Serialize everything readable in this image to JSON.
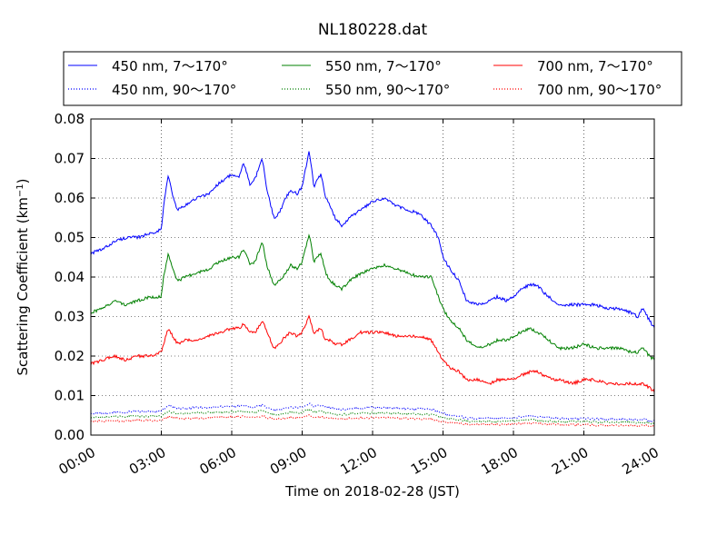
{
  "chart_data": {
    "type": "line",
    "title": "NL180228.dat",
    "xlabel": "Time on 2018-02-28 (JST)",
    "ylabel_main": "Scattering Coefficient (km",
    "ylabel_sup": "−1",
    "ylabel_close": ")",
    "xlim": [
      0,
      24
    ],
    "ylim": [
      0,
      0.08
    ],
    "x_ticks": [
      0,
      3,
      6,
      9,
      12,
      15,
      18,
      21,
      24
    ],
    "x_tick_labels": [
      "00:00",
      "03:00",
      "06:00",
      "09:00",
      "12:00",
      "15:00",
      "18:00",
      "21:00",
      "24:00"
    ],
    "y_ticks": [
      0,
      0.01,
      0.02,
      0.03,
      0.04,
      0.05,
      0.06,
      0.07,
      0.08
    ],
    "y_tick_labels": [
      "0.00",
      "0.01",
      "0.02",
      "0.03",
      "0.04",
      "0.05",
      "0.06",
      "0.07",
      "0.08"
    ],
    "grid": true,
    "legend_position": "top, outside plot, 3 columns",
    "x": [
      0,
      0.5,
      1,
      1.5,
      2,
      2.5,
      3,
      3.1,
      3.3,
      3.5,
      3.7,
      4,
      4.5,
      5,
      5.5,
      6,
      6.3,
      6.5,
      6.8,
      7,
      7.3,
      7.5,
      7.8,
      8,
      8.3,
      8.5,
      8.8,
      9,
      9.3,
      9.5,
      9.8,
      10,
      10.2,
      10.4,
      10.7,
      11,
      11.5,
      12,
      12.5,
      13,
      13.5,
      14,
      14.5,
      14.8,
      15,
      15.3,
      15.7,
      16,
      16.5,
      17,
      17.3,
      17.7,
      18,
      18.3,
      18.7,
      19,
      19.3,
      19.7,
      20,
      20.5,
      21,
      21.5,
      22,
      22.5,
      23,
      23.3,
      23.5,
      23.8,
      24
    ],
    "series": [
      {
        "name": "450 nm, 7～170°",
        "color": "#0000ff",
        "style": "solid",
        "values": [
          0.046,
          0.047,
          0.049,
          0.05,
          0.05,
          0.051,
          0.052,
          0.058,
          0.066,
          0.06,
          0.057,
          0.058,
          0.06,
          0.061,
          0.064,
          0.066,
          0.065,
          0.069,
          0.063,
          0.065,
          0.07,
          0.062,
          0.055,
          0.056,
          0.06,
          0.062,
          0.061,
          0.063,
          0.072,
          0.063,
          0.066,
          0.06,
          0.058,
          0.055,
          0.053,
          0.055,
          0.057,
          0.059,
          0.06,
          0.058,
          0.057,
          0.056,
          0.053,
          0.05,
          0.045,
          0.042,
          0.039,
          0.034,
          0.033,
          0.034,
          0.035,
          0.034,
          0.035,
          0.037,
          0.038,
          0.038,
          0.036,
          0.034,
          0.033,
          0.033,
          0.033,
          0.033,
          0.032,
          0.032,
          0.031,
          0.03,
          0.032,
          0.029,
          0.027
        ]
      },
      {
        "name": "550 nm, 7～170°",
        "color": "#008000",
        "style": "solid",
        "values": [
          0.031,
          0.032,
          0.034,
          0.033,
          0.034,
          0.035,
          0.035,
          0.04,
          0.046,
          0.042,
          0.039,
          0.04,
          0.041,
          0.042,
          0.044,
          0.045,
          0.045,
          0.047,
          0.043,
          0.044,
          0.049,
          0.043,
          0.038,
          0.039,
          0.041,
          0.043,
          0.042,
          0.044,
          0.051,
          0.044,
          0.046,
          0.041,
          0.039,
          0.038,
          0.037,
          0.039,
          0.041,
          0.042,
          0.043,
          0.042,
          0.041,
          0.04,
          0.04,
          0.035,
          0.032,
          0.029,
          0.027,
          0.024,
          0.022,
          0.023,
          0.024,
          0.024,
          0.025,
          0.026,
          0.027,
          0.026,
          0.025,
          0.023,
          0.022,
          0.022,
          0.023,
          0.022,
          0.022,
          0.022,
          0.021,
          0.021,
          0.022,
          0.02,
          0.019
        ]
      },
      {
        "name": "700 nm, 7～170°",
        "color": "#ff0000",
        "style": "solid",
        "values": [
          0.018,
          0.019,
          0.02,
          0.019,
          0.02,
          0.02,
          0.021,
          0.023,
          0.027,
          0.025,
          0.023,
          0.024,
          0.024,
          0.025,
          0.026,
          0.027,
          0.027,
          0.028,
          0.026,
          0.026,
          0.029,
          0.026,
          0.022,
          0.023,
          0.025,
          0.026,
          0.025,
          0.026,
          0.03,
          0.026,
          0.027,
          0.024,
          0.024,
          0.023,
          0.023,
          0.024,
          0.026,
          0.026,
          0.026,
          0.025,
          0.025,
          0.025,
          0.024,
          0.021,
          0.019,
          0.017,
          0.016,
          0.014,
          0.014,
          0.013,
          0.014,
          0.014,
          0.014,
          0.015,
          0.016,
          0.016,
          0.015,
          0.014,
          0.014,
          0.013,
          0.014,
          0.014,
          0.013,
          0.013,
          0.013,
          0.013,
          0.013,
          0.012,
          0.011
        ]
      },
      {
        "name": "450 nm, 90～170°",
        "color": "#0000ff",
        "style": "dotted",
        "values": [
          0.0055,
          0.0055,
          0.0058,
          0.0058,
          0.006,
          0.006,
          0.006,
          0.0065,
          0.0075,
          0.007,
          0.0068,
          0.0068,
          0.007,
          0.007,
          0.0072,
          0.0073,
          0.0073,
          0.0075,
          0.007,
          0.0072,
          0.0077,
          0.007,
          0.0065,
          0.0065,
          0.0068,
          0.007,
          0.007,
          0.0072,
          0.008,
          0.0073,
          0.0075,
          0.007,
          0.0068,
          0.0066,
          0.0065,
          0.0066,
          0.0068,
          0.007,
          0.007,
          0.0068,
          0.0067,
          0.0066,
          0.0065,
          0.006,
          0.0055,
          0.005,
          0.0048,
          0.0043,
          0.0042,
          0.0043,
          0.0043,
          0.0043,
          0.0044,
          0.0046,
          0.0048,
          0.0047,
          0.0045,
          0.0043,
          0.0042,
          0.0042,
          0.0042,
          0.0041,
          0.004,
          0.004,
          0.004,
          0.0039,
          0.004,
          0.0037,
          0.0035
        ]
      },
      {
        "name": "550 nm, 90～170°",
        "color": "#008000",
        "style": "dotted",
        "values": [
          0.0045,
          0.0045,
          0.0047,
          0.0047,
          0.0048,
          0.0048,
          0.0048,
          0.0053,
          0.006,
          0.0057,
          0.0055,
          0.0055,
          0.0056,
          0.0057,
          0.0058,
          0.0059,
          0.0059,
          0.006,
          0.0057,
          0.0058,
          0.0062,
          0.0057,
          0.0053,
          0.0053,
          0.0055,
          0.0057,
          0.0056,
          0.0058,
          0.0065,
          0.0059,
          0.006,
          0.0057,
          0.0055,
          0.0053,
          0.0052,
          0.0053,
          0.0055,
          0.0056,
          0.0056,
          0.0055,
          0.0054,
          0.0053,
          0.0052,
          0.0048,
          0.0045,
          0.0041,
          0.0039,
          0.0035,
          0.0034,
          0.0035,
          0.0035,
          0.0035,
          0.0036,
          0.0037,
          0.0039,
          0.0038,
          0.0036,
          0.0035,
          0.0034,
          0.0034,
          0.0034,
          0.0033,
          0.0032,
          0.0032,
          0.0032,
          0.0031,
          0.0032,
          0.003,
          0.0028
        ]
      },
      {
        "name": "700 nm, 90～170°",
        "color": "#ff0000",
        "style": "dotted",
        "values": [
          0.0035,
          0.0035,
          0.0036,
          0.0036,
          0.0037,
          0.0037,
          0.0037,
          0.0041,
          0.0047,
          0.0044,
          0.0042,
          0.0042,
          0.0043,
          0.0044,
          0.0045,
          0.0046,
          0.0046,
          0.0047,
          0.0044,
          0.0045,
          0.0048,
          0.0044,
          0.0041,
          0.0041,
          0.0043,
          0.0044,
          0.0043,
          0.0045,
          0.005,
          0.0046,
          0.0047,
          0.0044,
          0.0043,
          0.0041,
          0.0041,
          0.0042,
          0.0043,
          0.0044,
          0.0044,
          0.0043,
          0.0042,
          0.0041,
          0.004,
          0.0037,
          0.0034,
          0.0031,
          0.003,
          0.0027,
          0.0026,
          0.0027,
          0.0027,
          0.0027,
          0.0028,
          0.0029,
          0.003,
          0.0029,
          0.0028,
          0.0027,
          0.0026,
          0.0026,
          0.0026,
          0.0025,
          0.0025,
          0.0025,
          0.0024,
          0.0024,
          0.0025,
          0.0023,
          0.0022
        ]
      }
    ]
  }
}
